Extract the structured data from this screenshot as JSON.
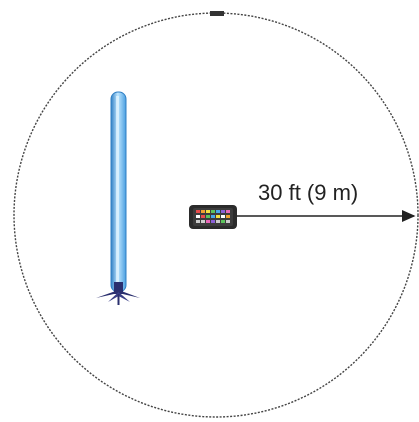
{
  "diagram": {
    "range_label": "30 ft (9 m)",
    "colors": {
      "boundary": "#444444",
      "tube_fill": "#5fb4f0",
      "tube_highlight": "#bfe6ff",
      "tube_edge": "#2f7fc4",
      "stand": "#2a2f6e",
      "remote_body": "#2b2b2b",
      "arrow": "#222222"
    },
    "icons": {
      "light_tube": "light-tube-icon",
      "remote": "remote-control-icon"
    }
  }
}
